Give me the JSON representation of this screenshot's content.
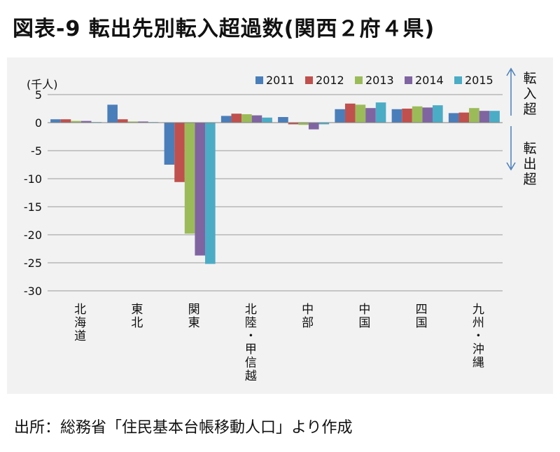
{
  "title": "図表-9 転出先別転入超過数(関西２府４県)",
  "source": "出所：総務省「住民基本台帳移動人口」より作成",
  "side_labels": {
    "inbound": "転入超",
    "outbound": "転出超"
  },
  "colors": {
    "2011": "#4a7ebb",
    "2012": "#c0504d",
    "2013": "#9bbb59",
    "2014": "#8064a2",
    "2015": "#4bacc6",
    "grid": "#999999",
    "arrow": "#4a7ebb"
  },
  "chart_data": {
    "type": "bar",
    "unit_label": "(千人)",
    "ylim": [
      -30,
      5
    ],
    "yticks": [
      5,
      0,
      -5,
      -10,
      -15,
      -20,
      -25,
      -30
    ],
    "grid": true,
    "legend_position": "top",
    "categories": [
      "北海道",
      "東北",
      "関東",
      "北陸・甲信越",
      "中部",
      "中国",
      "四国",
      "九州・沖縄"
    ],
    "series": [
      {
        "name": "2011",
        "values": [
          0.6,
          3.2,
          -7.5,
          1.2,
          1.0,
          2.4,
          2.4,
          1.7
        ]
      },
      {
        "name": "2012",
        "values": [
          0.6,
          0.6,
          -10.6,
          1.6,
          -0.3,
          3.4,
          2.5,
          1.8
        ]
      },
      {
        "name": "2013",
        "values": [
          0.3,
          0.2,
          -19.8,
          1.5,
          -0.4,
          3.2,
          2.9,
          2.6
        ]
      },
      {
        "name": "2014",
        "values": [
          0.3,
          0.2,
          -23.7,
          1.3,
          -1.2,
          2.6,
          2.7,
          2.1
        ]
      },
      {
        "name": "2015",
        "values": [
          0.1,
          0.1,
          -25.2,
          0.9,
          -0.3,
          3.6,
          3.1,
          2.1
        ]
      }
    ]
  }
}
